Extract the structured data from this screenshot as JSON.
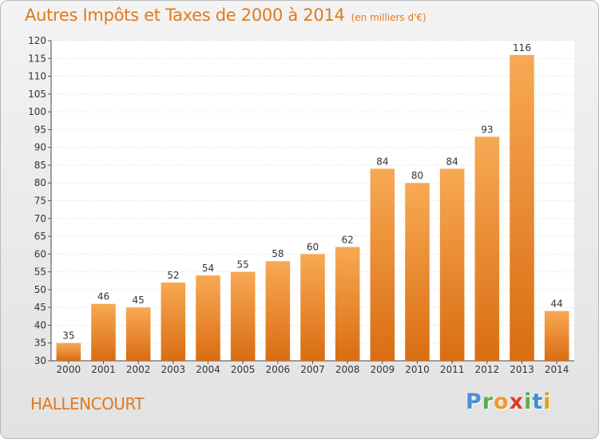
{
  "title": "Autres Impôts et Taxes de 2000 à 2014",
  "unit_label": "(en milliers d'€)",
  "commune": "HALLENCOURT",
  "brand": {
    "letters": [
      "P",
      "r",
      "o",
      "x",
      "i",
      "t",
      "i"
    ],
    "colors": [
      "#4a8fd0",
      "#57b04b",
      "#f19a28",
      "#e23a2a",
      "#57b04b",
      "#3a8fd4",
      "#e0a020"
    ]
  },
  "colors": {
    "bar_light": "#f8a954",
    "bar_dark": "#d96d12",
    "title": "#e07a1c"
  },
  "chart_data": {
    "type": "bar",
    "title": "Autres Impôts et Taxes de 2000 à 2014",
    "categories": [
      "2000",
      "2001",
      "2002",
      "2003",
      "2004",
      "2005",
      "2006",
      "2007",
      "2008",
      "2009",
      "2010",
      "2011",
      "2012",
      "2013",
      "2014"
    ],
    "values": [
      35,
      46,
      45,
      52,
      54,
      55,
      58,
      60,
      62,
      84,
      80,
      84,
      93,
      116,
      44
    ],
    "data_labels": [
      "35",
      "46",
      "45",
      "52",
      "54",
      "55",
      "58",
      "60",
      "62",
      "84",
      "80",
      "84",
      "93",
      "116",
      "44"
    ],
    "yticks": [
      "30",
      "35",
      "40",
      "45",
      "50",
      "55",
      "60",
      "65",
      "70",
      "75",
      "80",
      "85",
      "90",
      "95",
      "100",
      "105",
      "110",
      "115",
      "120"
    ],
    "ylim": [
      30,
      120
    ],
    "grid": true
  }
}
